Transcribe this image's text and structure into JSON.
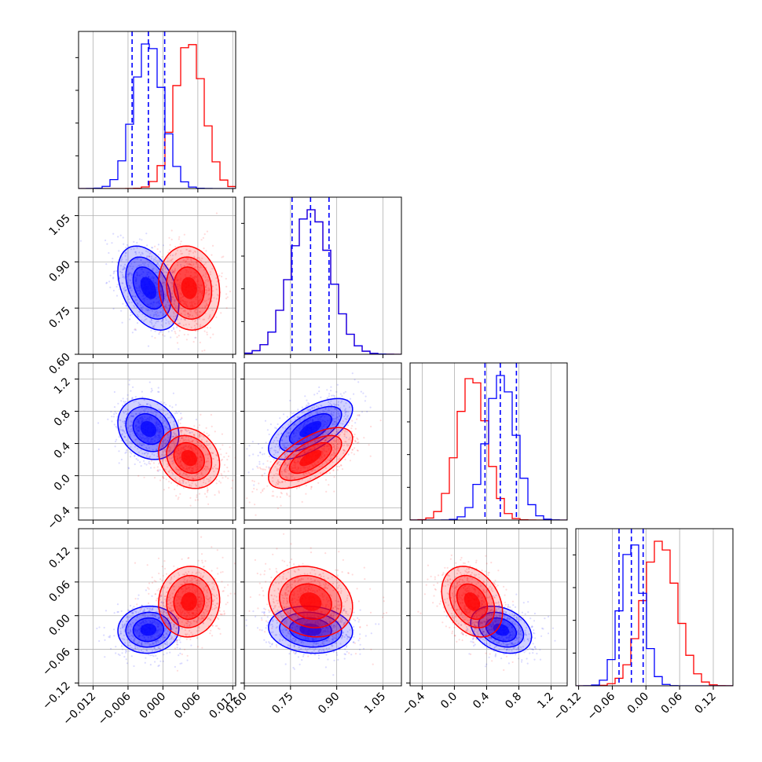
{
  "colors": {
    "blue": "#0000ff",
    "red": "#ff0000",
    "grid": "#b0b0b0",
    "frame": "#000000"
  },
  "chart_data": {
    "type": "corner",
    "description_note": "",
    "parameters": [
      {
        "ticks": [
          -0.012,
          -0.006,
          0.0,
          0.006,
          0.012
        ],
        "tick_labels": [
          "−0.012",
          "−0.006",
          "0.000",
          "0.006",
          "0.012"
        ],
        "range": [
          -0.0145,
          0.0125
        ]
      },
      {
        "ticks": [
          0.6,
          0.75,
          0.9,
          1.05
        ],
        "tick_labels": [
          "0.60",
          "0.75",
          "0.90",
          "1.05"
        ],
        "range": [
          0.6,
          1.11
        ]
      },
      {
        "ticks": [
          -0.4,
          0.0,
          0.4,
          0.8,
          1.2
        ],
        "tick_labels": [
          "−0.4",
          "0.0",
          "0.4",
          "0.8",
          "1.2"
        ],
        "range": [
          -0.55,
          1.4
        ]
      },
      {
        "ticks": [
          -0.12,
          -0.06,
          0.0,
          0.06,
          0.12
        ],
        "tick_labels": [
          "−0.12",
          "−0.06",
          "0.00",
          "0.06",
          "0.12"
        ],
        "range": [
          -0.125,
          0.155
        ]
      }
    ],
    "series": [
      {
        "color": "blue",
        "means": [
          -0.0025,
          0.815,
          0.58,
          -0.025
        ],
        "sds": [
          0.0025,
          0.065,
          0.18,
          0.02
        ],
        "quantiles": [
          [
            -0.0053,
            -0.0025,
            0.0003
          ],
          [
            0.755,
            0.815,
            0.875
          ],
          [
            0.38,
            0.57,
            0.77
          ],
          [
            -0.048,
            -0.026,
            -0.005
          ]
        ]
      },
      {
        "color": "red",
        "means": [
          0.0045,
          0.815,
          0.22,
          0.025
        ],
        "sds": [
          0.0025,
          0.065,
          0.18,
          0.03
        ],
        "quantiles": null
      }
    ],
    "correlations": {
      "blue": {
        "1-0": -0.4,
        "2-0": -0.2,
        "2-1": 0.65,
        "3-0": 0.05,
        "3-1": -0.1,
        "3-2": -0.3
      },
      "red": {
        "1-0": -0.1,
        "2-0": -0.2,
        "2-1": 0.65,
        "3-0": 0.05,
        "3-1": -0.15,
        "3-2": -0.3
      }
    },
    "grid": true
  }
}
